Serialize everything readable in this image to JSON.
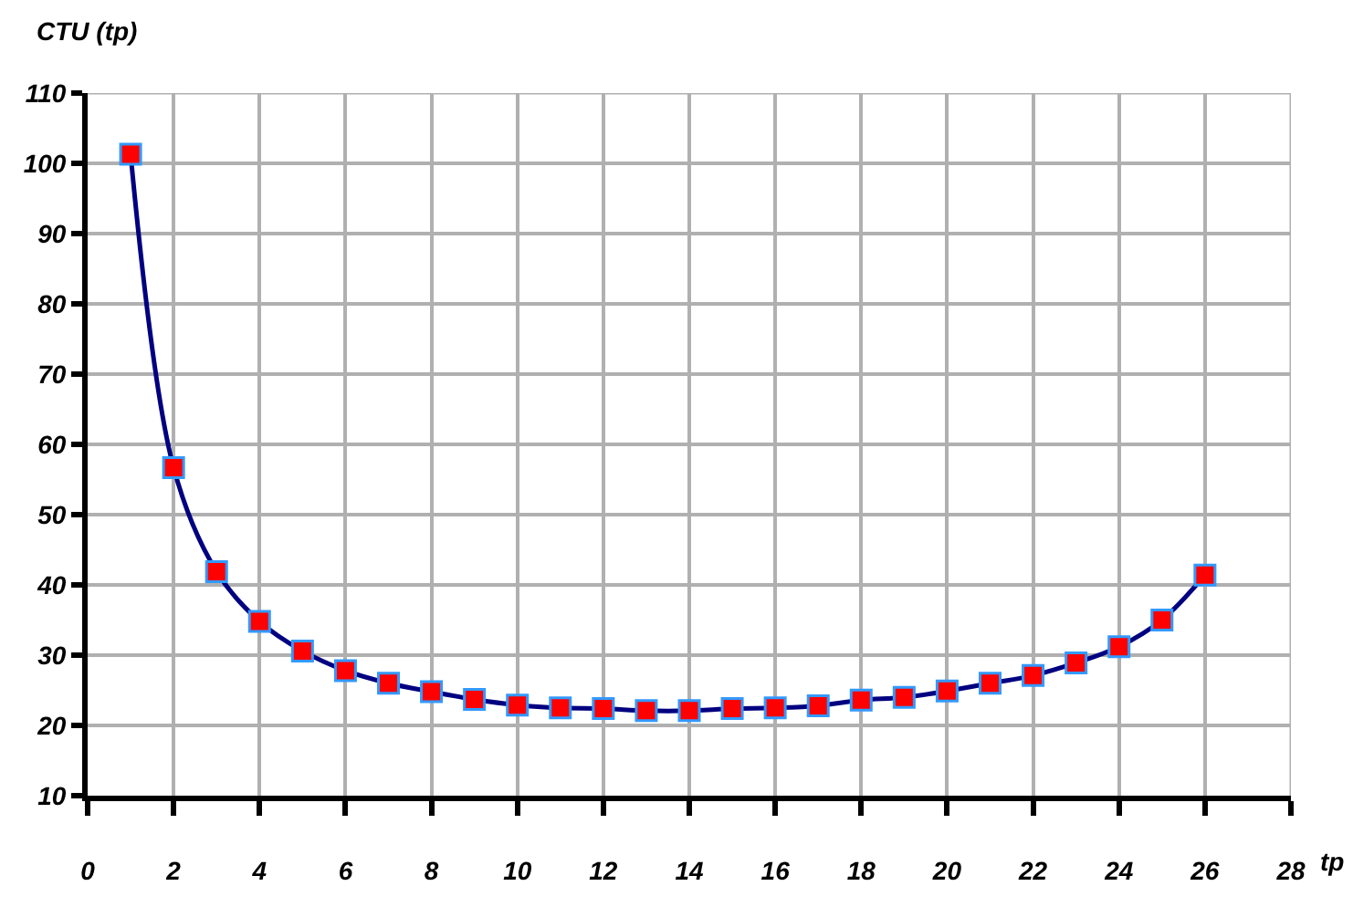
{
  "chart_data": {
    "type": "line",
    "xlabel": "tp",
    "ylabel": "CTU (tp)",
    "x": [
      1,
      2,
      3,
      4,
      5,
      6,
      7,
      8,
      9,
      10,
      11,
      12,
      13,
      14,
      15,
      16,
      17,
      18,
      19,
      20,
      21,
      22,
      23,
      24,
      25,
      26
    ],
    "series": [
      {
        "color": "#000080",
        "values": [
          101.3,
          56.7,
          41.9,
          34.8,
          30.6,
          27.8,
          26.0,
          24.8,
          23.7,
          22.9,
          22.5,
          22.4,
          22.1,
          22.1,
          22.4,
          22.5,
          22.8,
          23.6,
          24.0,
          24.9,
          26.0,
          27.1,
          28.9,
          31.2,
          35.0,
          41.4
        ]
      }
    ],
    "marker": "square",
    "line_style": "solid",
    "grid": true,
    "xlim": [
      0,
      28
    ],
    "xticks": [
      0,
      2,
      4,
      6,
      8,
      10,
      12,
      14,
      16,
      18,
      20,
      22,
      24,
      26,
      28
    ],
    "ylim": [
      10,
      110
    ],
    "yticks": [
      10,
      20,
      30,
      40,
      50,
      60,
      70,
      80,
      90,
      100,
      110
    ]
  }
}
